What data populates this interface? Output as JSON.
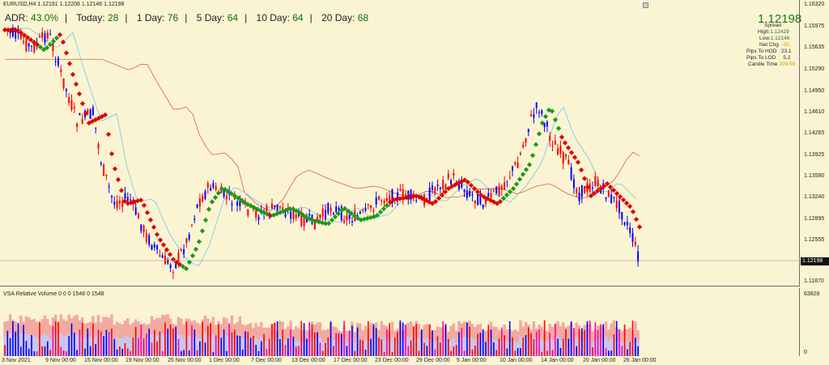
{
  "header": {
    "title": "EURUSD,H4  1.12191 1.12208 1.12146 1.12198"
  },
  "adr": {
    "adr_label": "ADR:",
    "adr_value": "43.0%",
    "today_label": "Today:",
    "today_value": "28",
    "day1_label": "1 Day:",
    "day1_value": "76",
    "day5_label": "5 Day:",
    "day5_value": "64",
    "day10_label": "10 Day:",
    "day10_value": "64",
    "day20_label": "20 Day:",
    "day20_value": "68"
  },
  "info_panel": {
    "price": "1.12198",
    "spread_label": "Spread",
    "high_label": "High:",
    "high_value": "1.12429",
    "low_label": "Low:",
    "low_value": "1.12146",
    "netchg_label": "Net Chg",
    "netchg_value": "-20",
    "hod_label": "Pips To HOD",
    "hod_value": "23.1",
    "lod_label": "Pips To LOD",
    "lod_value": "5.2",
    "candle_label": "Candle Time",
    "candle_value": "209:59"
  },
  "price_axis": [
    "1.16320",
    "1.15975",
    "1.15635",
    "1.15290",
    "1.14950",
    "1.14610",
    "1.14265",
    "1.13925",
    "1.13580",
    "1.13240",
    "1.12895",
    "1.12555",
    "1.12198",
    "1.11870"
  ],
  "current_price": "1.12198",
  "volume_pane": {
    "title": "VSA Relative Volume 0 0 0 1548 0 1548",
    "top_tick": "63828",
    "bottom_tick": "0"
  },
  "time_axis": [
    "3 Nov 2021",
    "9 Nov 00:00",
    "15 Nov 00:00",
    "19 Nov 00:00",
    "25 Nov 00:00",
    "1 Dec 00:00",
    "7 Dec 00:00",
    "13 Dec 00:00",
    "17 Dec 00:00",
    "23 Dec 00:00",
    "29 Dec 00:00",
    "5 Jan 00:00",
    "10 Jan 00:00",
    "14 Jan 00:00",
    "20 Jan 00:00",
    "26 Jan 00:00"
  ],
  "colors": {
    "bg": "#fbf4d2",
    "bull": "#0000ff",
    "bear": "#ff0000",
    "ma_up": "#1a9a1a",
    "ma_down": "#e00000",
    "ma_slow": "#e05a4a",
    "ma_fast": "#6ec6e8"
  }
}
